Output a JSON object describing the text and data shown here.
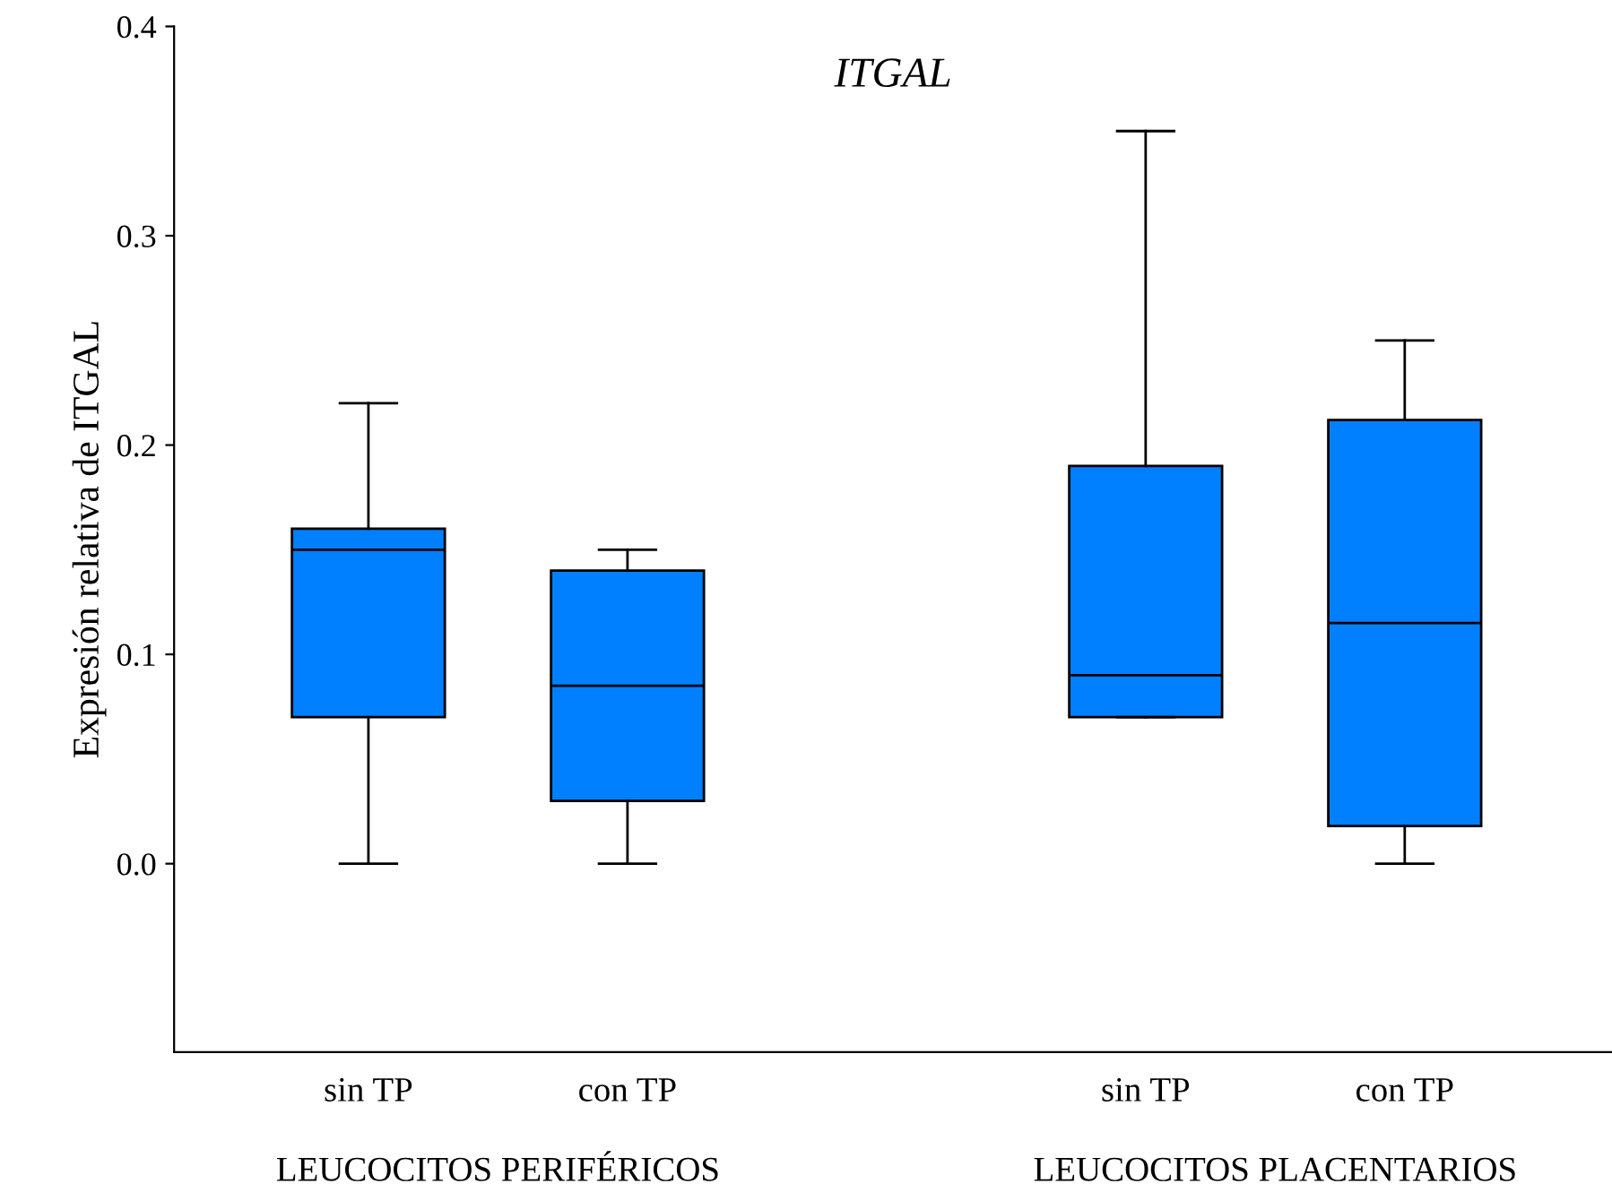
{
  "chart_data": {
    "type": "box",
    "title": "ITGAL",
    "ylabel": "Expresión relativa de ITGAL",
    "categories": [
      "sin TP",
      "con TP",
      "sin TP",
      "con TP"
    ],
    "boxes": [
      {
        "low": 0.0,
        "q1": 0.07,
        "median": 0.15,
        "q3": 0.16,
        "high": 0.22
      },
      {
        "low": 0.0,
        "q1": 0.03,
        "median": 0.085,
        "q3": 0.14,
        "high": 0.15
      },
      {
        "low": 0.07,
        "q1": 0.07,
        "median": 0.09,
        "q3": 0.19,
        "high": 0.35
      },
      {
        "low": 0.0,
        "q1": 0.018,
        "median": 0.115,
        "q3": 0.212,
        "high": 0.25
      }
    ],
    "color": "#0080ff",
    "ylim": [
      -0.09,
      0.4
    ],
    "yticks": [
      {
        "value": 0.0,
        "label": "0.0"
      },
      {
        "value": 0.1,
        "label": "0.1"
      },
      {
        "value": 0.2,
        "label": "0.2"
      },
      {
        "value": 0.3,
        "label": "0.3"
      },
      {
        "value": 0.4,
        "label": "0.4"
      }
    ],
    "annotations": [
      "LEUCOCITOS PERIFÉRICOS",
      "LEUCOCITOS PLACENTARIOS"
    ],
    "grid": false,
    "legend": false
  }
}
